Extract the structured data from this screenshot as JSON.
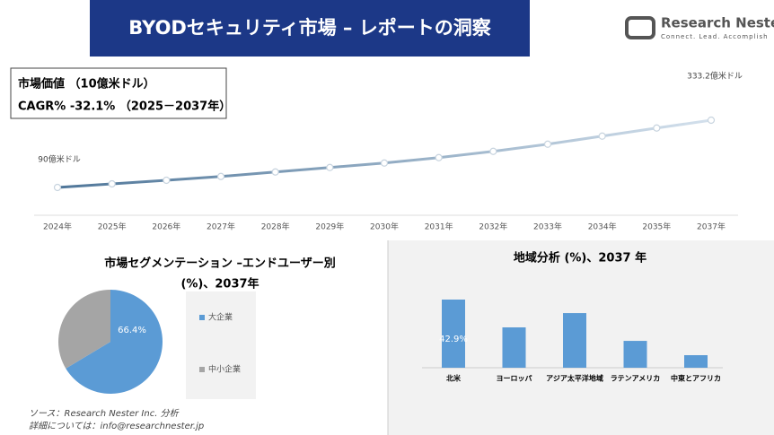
{
  "header": {
    "title": "BYODセキュリティ市場 – レポートの洞察",
    "logo": "Research Nester",
    "tagline": "Connect. Lead. Accomplish"
  },
  "chart_data": [
    {
      "type": "line",
      "title": "市場価値 （10億米ドル）",
      "subtitle": "CAGR% -32.1% （2025－2037年）",
      "categories": [
        "2024年",
        "2025年",
        "2026年",
        "2027年",
        "2028年",
        "2029年",
        "2030年",
        "2031年",
        "2032年",
        "2033年",
        "2034年",
        "2035年",
        "2037年"
      ],
      "values": [
        90,
        103,
        116,
        129.7,
        145.9,
        162.1,
        178.3,
        197.8,
        220.5,
        246.4,
        275.6,
        304.8,
        333.2
      ],
      "value_labels": [
        "90億米ドル",
        null,
        null,
        null,
        null,
        null,
        null,
        null,
        null,
        null,
        null,
        null,
        "333.2億米ドル"
      ],
      "colors": [
        "#4f7699",
        "#d3e0ec"
      ]
    },
    {
      "type": "pie",
      "title": "市場セグメンテーション –エンドユーザー別",
      "subtitle": "(%)、2037年",
      "categories": [
        "大企業",
        "中小企業"
      ],
      "values": [
        66.4,
        33.6
      ],
      "value_labels": [
        "66.4%",
        null
      ],
      "colors": [
        "#5b9bd5",
        "#a5a5a5"
      ]
    },
    {
      "type": "bar",
      "title": "地域分析 (%)、2037 年",
      "categories": [
        "北米",
        "ヨーロッパ",
        "アジア太平洋地域",
        "ラテンアメリカ",
        "中東とアフリカ"
      ],
      "values": [
        42.9,
        25.4,
        34.4,
        16.9,
        7.9
      ],
      "value_labels": [
        "42.9%",
        null,
        null,
        null,
        null
      ],
      "color": "#5b9bd5"
    }
  ],
  "footer": {
    "source": "ソース：Research Nester Inc. 分析",
    "contact": "詳細については：info@researchnester.jp"
  }
}
